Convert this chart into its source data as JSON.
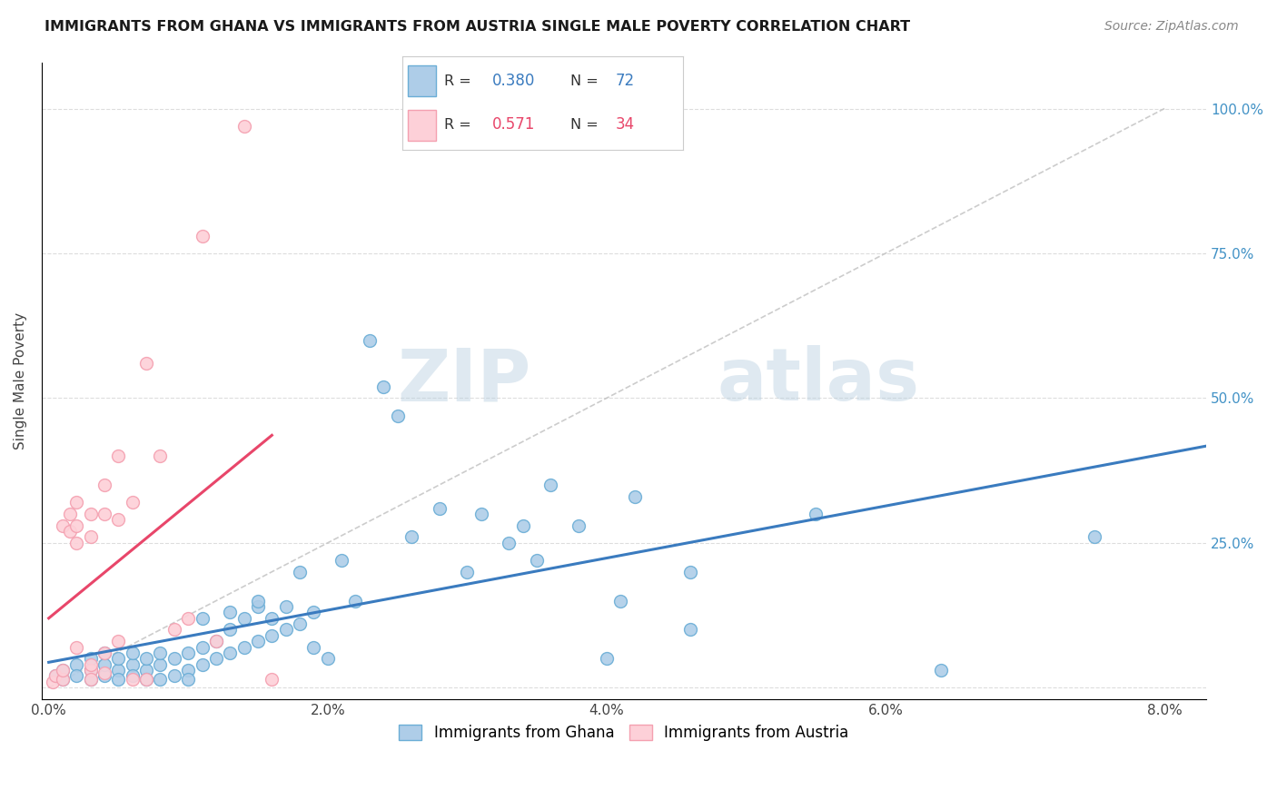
{
  "title": "IMMIGRANTS FROM GHANA VS IMMIGRANTS FROM AUSTRIA SINGLE MALE POVERTY CORRELATION CHART",
  "source": "Source: ZipAtlas.com",
  "ylabel": "Single Male Poverty",
  "yticks": [
    0.0,
    0.25,
    0.5,
    0.75,
    1.0
  ],
  "ytick_labels": [
    "",
    "25.0%",
    "50.0%",
    "75.0%",
    "100.0%"
  ],
  "xticks": [
    0.0,
    0.02,
    0.04,
    0.06,
    0.08
  ],
  "xlim": [
    -0.0005,
    0.083
  ],
  "ylim": [
    -0.02,
    1.08
  ],
  "ghana_color": "#6baed6",
  "ghana_color_fill": "#aecde8",
  "austria_color": "#f4a0b0",
  "austria_color_fill": "#fdd0d8",
  "trendline_color_ghana": "#3a7bbf",
  "trendline_color_austria": "#e8466a",
  "diagonal_color": "#c0c0c0",
  "ghana_R": 0.38,
  "ghana_N": 72,
  "austria_R": 0.571,
  "austria_N": 34,
  "ghana_points": [
    [
      0.0005,
      0.02
    ],
    [
      0.001,
      0.03
    ],
    [
      0.001,
      0.015
    ],
    [
      0.002,
      0.04
    ],
    [
      0.002,
      0.02
    ],
    [
      0.003,
      0.03
    ],
    [
      0.003,
      0.015
    ],
    [
      0.003,
      0.05
    ],
    [
      0.004,
      0.02
    ],
    [
      0.004,
      0.04
    ],
    [
      0.004,
      0.06
    ],
    [
      0.005,
      0.03
    ],
    [
      0.005,
      0.05
    ],
    [
      0.005,
      0.015
    ],
    [
      0.006,
      0.04
    ],
    [
      0.006,
      0.02
    ],
    [
      0.006,
      0.06
    ],
    [
      0.007,
      0.03
    ],
    [
      0.007,
      0.05
    ],
    [
      0.007,
      0.015
    ],
    [
      0.008,
      0.04
    ],
    [
      0.008,
      0.06
    ],
    [
      0.008,
      0.015
    ],
    [
      0.009,
      0.05
    ],
    [
      0.009,
      0.02
    ],
    [
      0.01,
      0.06
    ],
    [
      0.01,
      0.03
    ],
    [
      0.01,
      0.015
    ],
    [
      0.011,
      0.07
    ],
    [
      0.011,
      0.04
    ],
    [
      0.011,
      0.12
    ],
    [
      0.012,
      0.05
    ],
    [
      0.012,
      0.08
    ],
    [
      0.013,
      0.06
    ],
    [
      0.013,
      0.1
    ],
    [
      0.013,
      0.13
    ],
    [
      0.014,
      0.07
    ],
    [
      0.014,
      0.12
    ],
    [
      0.015,
      0.08
    ],
    [
      0.015,
      0.14
    ],
    [
      0.015,
      0.15
    ],
    [
      0.016,
      0.09
    ],
    [
      0.016,
      0.12
    ],
    [
      0.017,
      0.1
    ],
    [
      0.017,
      0.14
    ],
    [
      0.018,
      0.11
    ],
    [
      0.018,
      0.2
    ],
    [
      0.019,
      0.13
    ],
    [
      0.019,
      0.07
    ],
    [
      0.02,
      0.05
    ],
    [
      0.021,
      0.22
    ],
    [
      0.022,
      0.15
    ],
    [
      0.023,
      0.6
    ],
    [
      0.024,
      0.52
    ],
    [
      0.025,
      0.47
    ],
    [
      0.026,
      0.26
    ],
    [
      0.028,
      0.31
    ],
    [
      0.03,
      0.2
    ],
    [
      0.031,
      0.3
    ],
    [
      0.033,
      0.25
    ],
    [
      0.034,
      0.28
    ],
    [
      0.035,
      0.22
    ],
    [
      0.036,
      0.35
    ],
    [
      0.038,
      0.28
    ],
    [
      0.04,
      0.05
    ],
    [
      0.041,
      0.15
    ],
    [
      0.042,
      0.33
    ],
    [
      0.046,
      0.2
    ],
    [
      0.046,
      0.1
    ],
    [
      0.055,
      0.3
    ],
    [
      0.064,
      0.03
    ],
    [
      0.075,
      0.26
    ]
  ],
  "austria_points": [
    [
      0.0003,
      0.01
    ],
    [
      0.0005,
      0.02
    ],
    [
      0.001,
      0.015
    ],
    [
      0.001,
      0.03
    ],
    [
      0.001,
      0.28
    ],
    [
      0.0015,
      0.3
    ],
    [
      0.0015,
      0.27
    ],
    [
      0.002,
      0.28
    ],
    [
      0.002,
      0.25
    ],
    [
      0.002,
      0.32
    ],
    [
      0.002,
      0.07
    ],
    [
      0.003,
      0.3
    ],
    [
      0.003,
      0.26
    ],
    [
      0.003,
      0.03
    ],
    [
      0.003,
      0.04
    ],
    [
      0.003,
      0.015
    ],
    [
      0.004,
      0.35
    ],
    [
      0.004,
      0.3
    ],
    [
      0.004,
      0.06
    ],
    [
      0.004,
      0.025
    ],
    [
      0.005,
      0.4
    ],
    [
      0.005,
      0.29
    ],
    [
      0.005,
      0.08
    ],
    [
      0.006,
      0.32
    ],
    [
      0.006,
      0.015
    ],
    [
      0.007,
      0.56
    ],
    [
      0.007,
      0.015
    ],
    [
      0.008,
      0.4
    ],
    [
      0.009,
      0.1
    ],
    [
      0.01,
      0.12
    ],
    [
      0.011,
      0.78
    ],
    [
      0.012,
      0.08
    ],
    [
      0.014,
      0.97
    ],
    [
      0.016,
      0.015
    ]
  ]
}
